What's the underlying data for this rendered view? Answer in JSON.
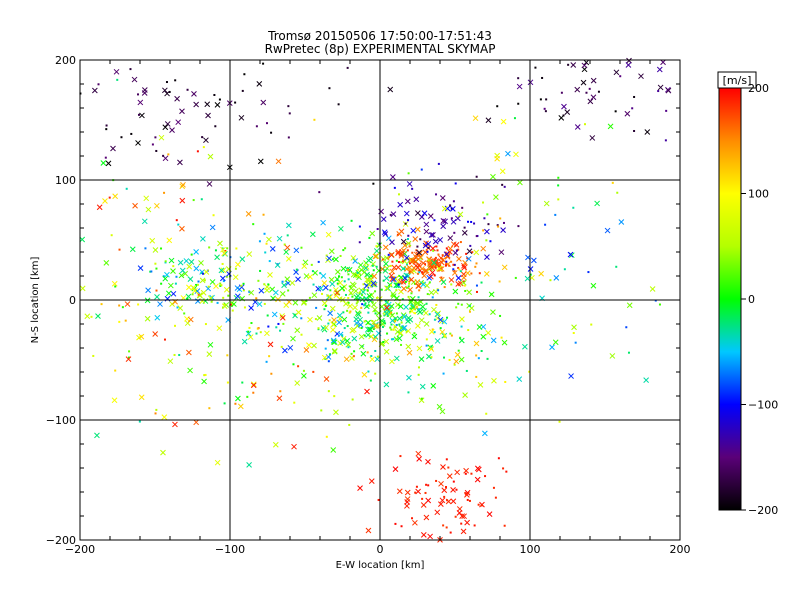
{
  "chart_data": {
    "type": "scatter",
    "title": "Tromsø 20150506 17:50:00-17:51:43",
    "subtitle": "RwPretec (8p) EXPERIMENTAL SKYMAP",
    "xlabel": "E-W location [km]",
    "ylabel": "N-S location [km]",
    "xlim": [
      -200,
      200
    ],
    "ylim": [
      -200,
      200
    ],
    "x_ticks": [
      -200,
      -100,
      0,
      100,
      200
    ],
    "y_ticks": [
      -200,
      -100,
      0,
      100,
      200
    ],
    "grid": true,
    "colorbar": {
      "unit_label": "[m/s]",
      "range": [
        -200,
        200
      ],
      "ticks": [
        200,
        100,
        0,
        -100,
        -200
      ],
      "colormap_stops": [
        {
          "value": -200,
          "color": "#000000"
        },
        {
          "value": -150,
          "color": "#5a0078"
        },
        {
          "value": -100,
          "color": "#0000ff"
        },
        {
          "value": -50,
          "color": "#00c8ff"
        },
        {
          "value": 0,
          "color": "#00ff00"
        },
        {
          "value": 50,
          "color": "#b4ff00"
        },
        {
          "value": 100,
          "color": "#ffff00"
        },
        {
          "value": 150,
          "color": "#ff8c00"
        },
        {
          "value": 200,
          "color": "#ff0000"
        }
      ]
    },
    "marker_types": [
      "cross",
      "dot"
    ],
    "clusters": [
      {
        "cx": 0,
        "cy": 0,
        "sx": 20,
        "sy": 22,
        "n": 260,
        "vmean": 20,
        "vspread": 120
      },
      {
        "cx": 30,
        "cy": 30,
        "sx": 18,
        "sy": 10,
        "n": 160,
        "vmean": 170,
        "vspread": 50
      },
      {
        "cx": -40,
        "cy": 5,
        "sx": 42,
        "sy": 30,
        "n": 200,
        "vmean": 0,
        "vspread": 200
      },
      {
        "cx": 20,
        "cy": -30,
        "sx": 35,
        "sy": 30,
        "n": 160,
        "vmean": 40,
        "vspread": 200
      },
      {
        "cx": 45,
        "cy": -165,
        "sx": 22,
        "sy": 18,
        "n": 85,
        "vmean": 190,
        "vspread": 20
      },
      {
        "cx": 40,
        "cy": 65,
        "sx": 25,
        "sy": 20,
        "n": 90,
        "vmean": -140,
        "vspread": 80
      },
      {
        "cx": -130,
        "cy": 160,
        "sx": 50,
        "sy": 30,
        "n": 85,
        "vmean": -180,
        "vspread": 60
      },
      {
        "cx": 160,
        "cy": 175,
        "sx": 35,
        "sy": 20,
        "n": 60,
        "vmean": -170,
        "vspread": 80
      },
      {
        "cx": -120,
        "cy": 15,
        "sx": 20,
        "sy": 15,
        "n": 95,
        "vmean": 0,
        "vspread": 200
      },
      {
        "cx": -100,
        "cy": -30,
        "sx": 50,
        "sy": 45,
        "n": 120,
        "vmean": 80,
        "vspread": 240
      },
      {
        "cx": 100,
        "cy": 30,
        "sx": 60,
        "sy": 60,
        "n": 100,
        "vmean": 20,
        "vspread": 240
      },
      {
        "cx": -150,
        "cy": 60,
        "sx": 40,
        "sy": 45,
        "n": 60,
        "vmean": 80,
        "vspread": 240
      }
    ]
  }
}
